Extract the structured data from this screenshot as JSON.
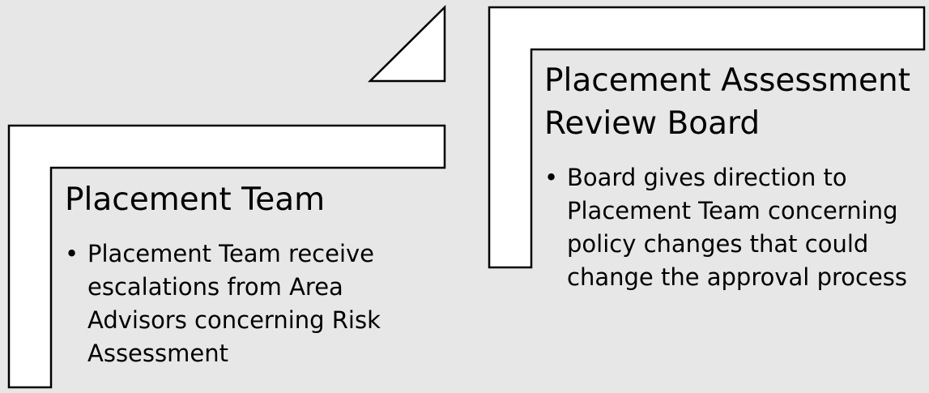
{
  "blocks": {
    "left": {
      "title": "Placement Team",
      "bullets": [
        "Placement Team receive escalations from Area Advisors concerning Risk Assessment"
      ]
    },
    "right": {
      "title_lines": [
        "Placement Assessment",
        "Review Board"
      ],
      "bullets": [
        "Board gives direction to Placement Team concerning policy changes that could change the approval process"
      ]
    }
  },
  "colors": {
    "background": "#e7e7e7",
    "shape_fill": "#ffffff",
    "shape_stroke": "#000000",
    "text": "#000000"
  }
}
